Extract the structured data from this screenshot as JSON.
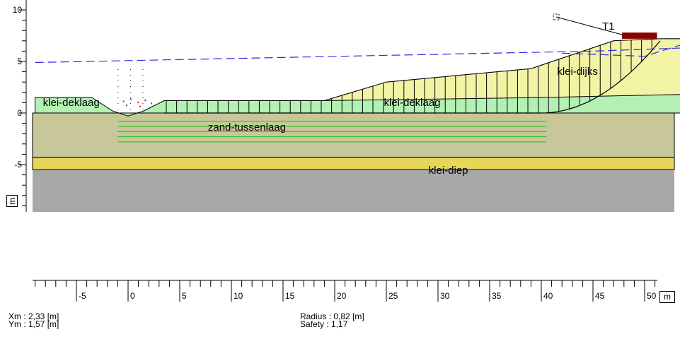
{
  "cross_section": {
    "title": "",
    "x_unit": "m",
    "y_unit": "m",
    "x_axis": {
      "min": -9,
      "max": 53.5,
      "ticks": [
        -5,
        0,
        5,
        10,
        15,
        20,
        25,
        30,
        35,
        40,
        45,
        50
      ]
    },
    "y_axis": {
      "min": -9.5,
      "max": 11,
      "ticks": [
        -5,
        0,
        5,
        10
      ]
    },
    "layers": [
      {
        "name": "klei-dijks",
        "color": "#f3f3a6",
        "label_x": 43.5,
        "label_y": 3.7
      },
      {
        "name": "klei-deklaag",
        "color": "#b3f0b3",
        "label_x": -5.5,
        "label_y": 0.7
      },
      {
        "name": "klei-deklaag",
        "color": "#b3f0b3",
        "label_x": 27.5,
        "label_y": 0.7
      },
      {
        "name": "zand-tussenlaag",
        "color": "#c8c79a",
        "label_x": 11.5,
        "label_y": -1.7
      },
      {
        "name": "klei-diep",
        "color": "#e6d65a",
        "label_x": 31,
        "label_y": -5.9
      },
      {
        "name": "",
        "color": "#a8a8a8"
      }
    ],
    "load": {
      "label": "T1",
      "color": "#8b0000"
    },
    "phreatic_line_color": "#2b2be8",
    "slip_circle_color": "#000000"
  },
  "result": {
    "xm": "Xm : 2,33 [m]",
    "ym": "Ym : 1,57 [m]",
    "radius": "Radius : 0,82 [m]",
    "safety": "Safety : 1,17"
  }
}
